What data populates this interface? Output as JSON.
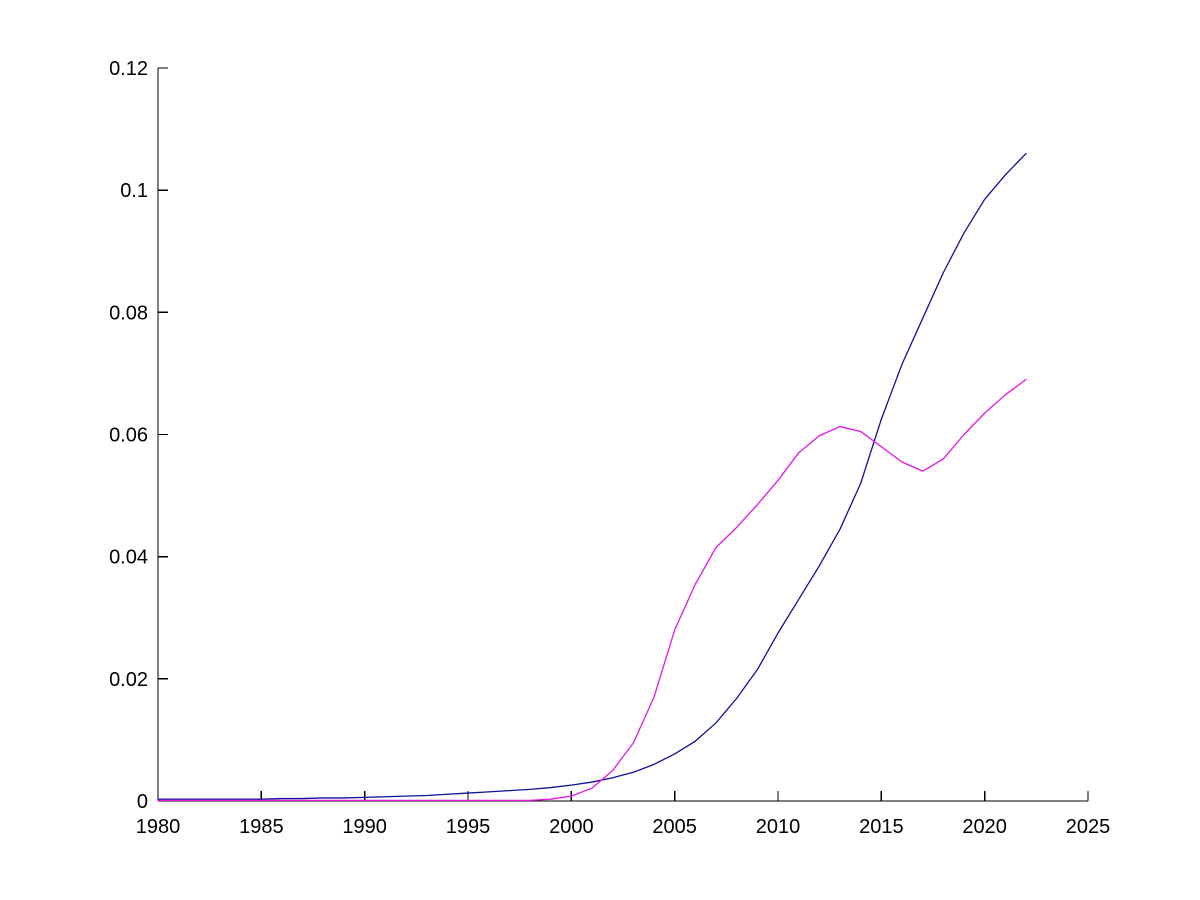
{
  "figure": {
    "background": "#ffffff",
    "axis_color": "#000000",
    "tick_label_color": "#000000"
  },
  "chart_data": {
    "type": "line",
    "title": "",
    "xlabel": "",
    "ylabel": "",
    "xlim": [
      1980,
      2025
    ],
    "ylim": [
      0,
      0.12
    ],
    "x_ticks": [
      1980,
      1985,
      1990,
      1995,
      2000,
      2005,
      2010,
      2015,
      2020,
      2025
    ],
    "x_tick_labels": [
      "1980",
      "1985",
      "1990",
      "1995",
      "2000",
      "2005",
      "2010",
      "2015",
      "2020",
      "2025"
    ],
    "y_ticks": [
      0,
      0.02,
      0.04,
      0.06,
      0.08,
      0.1,
      0.12
    ],
    "y_tick_labels": [
      "0",
      "0.02",
      "0.04",
      "0.06",
      "0.08",
      "0.1",
      "0.12"
    ],
    "grid": false,
    "box": false,
    "tick_direction": "in",
    "legend_position": "none",
    "x": [
      1980,
      1981,
      1982,
      1983,
      1984,
      1985,
      1986,
      1987,
      1988,
      1989,
      1990,
      1991,
      1992,
      1993,
      1994,
      1995,
      1996,
      1997,
      1998,
      1999,
      2000,
      2001,
      2002,
      2003,
      2004,
      2005,
      2006,
      2007,
      2008,
      2009,
      2010,
      2011,
      2012,
      2013,
      2014,
      2015,
      2016,
      2017,
      2018,
      2019,
      2020,
      2021,
      2022
    ],
    "series": [
      {
        "name": "dark-blue-line",
        "color": "#10109B",
        "values": [
          0.0003,
          0.0003,
          0.0003,
          0.0003,
          0.0003,
          0.0003,
          0.0004,
          0.0004,
          0.0005,
          0.0005,
          0.0006,
          0.0007,
          0.0008,
          0.0009,
          0.0011,
          0.0013,
          0.0015,
          0.0017,
          0.0019,
          0.0022,
          0.0026,
          0.0031,
          0.0038,
          0.0047,
          0.006,
          0.0077,
          0.0098,
          0.0128,
          0.0168,
          0.0215,
          0.0275,
          0.033,
          0.0385,
          0.0445,
          0.052,
          0.0625,
          0.0715,
          0.079,
          0.0865,
          0.093,
          0.0985,
          0.1025,
          0.106
        ]
      },
      {
        "name": "magenta-line",
        "color": "#E316E3",
        "values": [
          0.0001,
          0.0001,
          0.0001,
          0.0001,
          0.0001,
          0.0001,
          0.0001,
          0.0001,
          0.0001,
          0.0001,
          0.0001,
          0.0001,
          0.0001,
          0.0001,
          0.0001,
          0.0001,
          0.0001,
          0.0001,
          0.0001,
          0.0003,
          0.0008,
          0.0021,
          0.005,
          0.0095,
          0.017,
          0.028,
          0.0355,
          0.0415,
          0.0448,
          0.0485,
          0.0525,
          0.057,
          0.0598,
          0.0613,
          0.0605,
          0.058,
          0.0555,
          0.054,
          0.056,
          0.06,
          0.0635,
          0.0665,
          0.069
        ]
      }
    ]
  }
}
